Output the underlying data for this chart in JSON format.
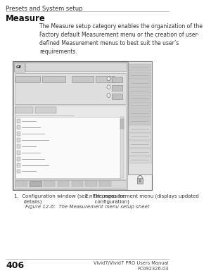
{
  "bg_color": "#ffffff",
  "header_text": "Presets and System setup",
  "title_text": "Measure",
  "body_text": "The Measure setup category enables the organization of the\nFactory default Measurement menu or the creation of user-\ndefined Measurement menus to best suit the user’s\nrequirements.",
  "figure_caption": "Figure 12-6:  The Measurement menu setup sheet",
  "footnote_left": "1.  Configuration window (see next pages for\n      details)",
  "footnote_right": "2.  The measurement menu (displays updated\n      configuration)",
  "page_number": "406",
  "footer_right": "Vivid7/Vivid7 PRO Users Manual\nFC092326-03",
  "sep_color": "#aaaaaa",
  "text_color": "#222222",
  "title_font_size": 8.5,
  "header_font_size": 6.0,
  "body_font_size": 5.5,
  "caption_font_size": 5.0,
  "page_num_font_size": 9.0,
  "footer_font_size": 4.8
}
